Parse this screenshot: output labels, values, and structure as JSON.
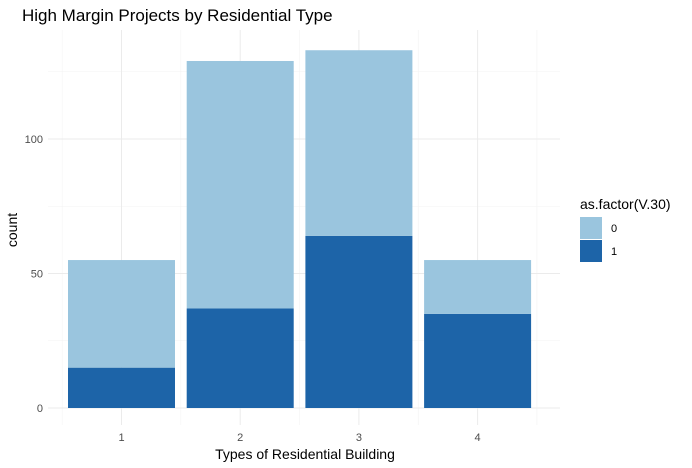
{
  "chart_data": {
    "type": "bar",
    "stacked": true,
    "title": "High Margin Projects by Residential Type",
    "xlabel": "Types of Residential Building",
    "ylabel": "count",
    "categories": [
      "1",
      "2",
      "3",
      "4"
    ],
    "series": [
      {
        "name": "0",
        "color": "#9ac5de",
        "values": [
          40,
          92,
          69,
          20
        ]
      },
      {
        "name": "1",
        "color": "#1d64a8",
        "values": [
          15,
          37,
          64,
          35
        ]
      }
    ],
    "ylim": [
      0,
      138
    ],
    "yticks": [
      0,
      50,
      100
    ],
    "grid": true,
    "legend": {
      "title": "as.factor(V.30)",
      "placement": "right"
    }
  }
}
